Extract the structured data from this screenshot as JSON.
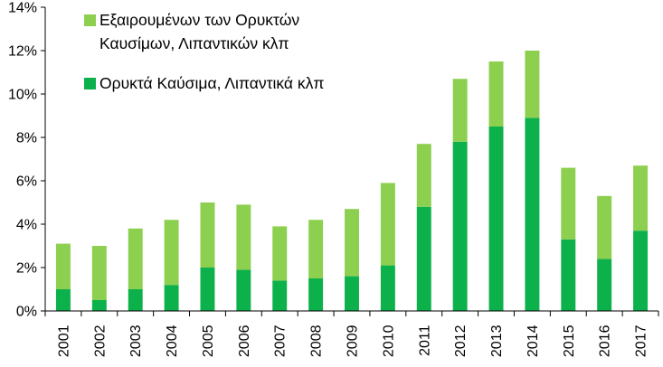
{
  "chart_data": {
    "type": "bar",
    "stacked": true,
    "categories": [
      "2001",
      "2002",
      "2003",
      "2004",
      "2005",
      "2006",
      "2007",
      "2008",
      "2009",
      "2010",
      "2011",
      "2012",
      "2013",
      "2014",
      "2015",
      "2016",
      "2017"
    ],
    "series": [
      {
        "name": "Ορυκτά Καύσιμα, Λιπαντικά κλπ",
        "color": "#0db14b",
        "values": [
          1.0,
          0.5,
          1.0,
          1.2,
          2.0,
          1.9,
          1.4,
          1.5,
          1.6,
          2.1,
          4.8,
          7.8,
          8.5,
          8.9,
          3.3,
          2.4,
          3.7
        ]
      },
      {
        "name": "Εξαιρουμένων των Ορυκτών Καυσίμων, Λιπαντικών κλπ",
        "name_lines": [
          "Εξαιρουμένων των Ορυκτών",
          "Καυσίμων, Λιπαντικών κλπ"
        ],
        "color": "#8dcf4f",
        "values": [
          2.1,
          2.5,
          2.8,
          3.0,
          3.0,
          3.0,
          2.5,
          2.7,
          3.1,
          3.8,
          2.9,
          2.9,
          3.0,
          3.1,
          3.3,
          2.9,
          3.0
        ]
      }
    ],
    "ylim": [
      0,
      14
    ],
    "ytick_values": [
      0,
      2,
      4,
      6,
      8,
      10,
      12,
      14
    ],
    "ytick_labels": [
      "0%",
      "2%",
      "4%",
      "6%",
      "8%",
      "10%",
      "12%",
      "14%"
    ],
    "title": "",
    "xlabel": "",
    "ylabel": "",
    "grid": false,
    "legend_position": "top-left"
  }
}
